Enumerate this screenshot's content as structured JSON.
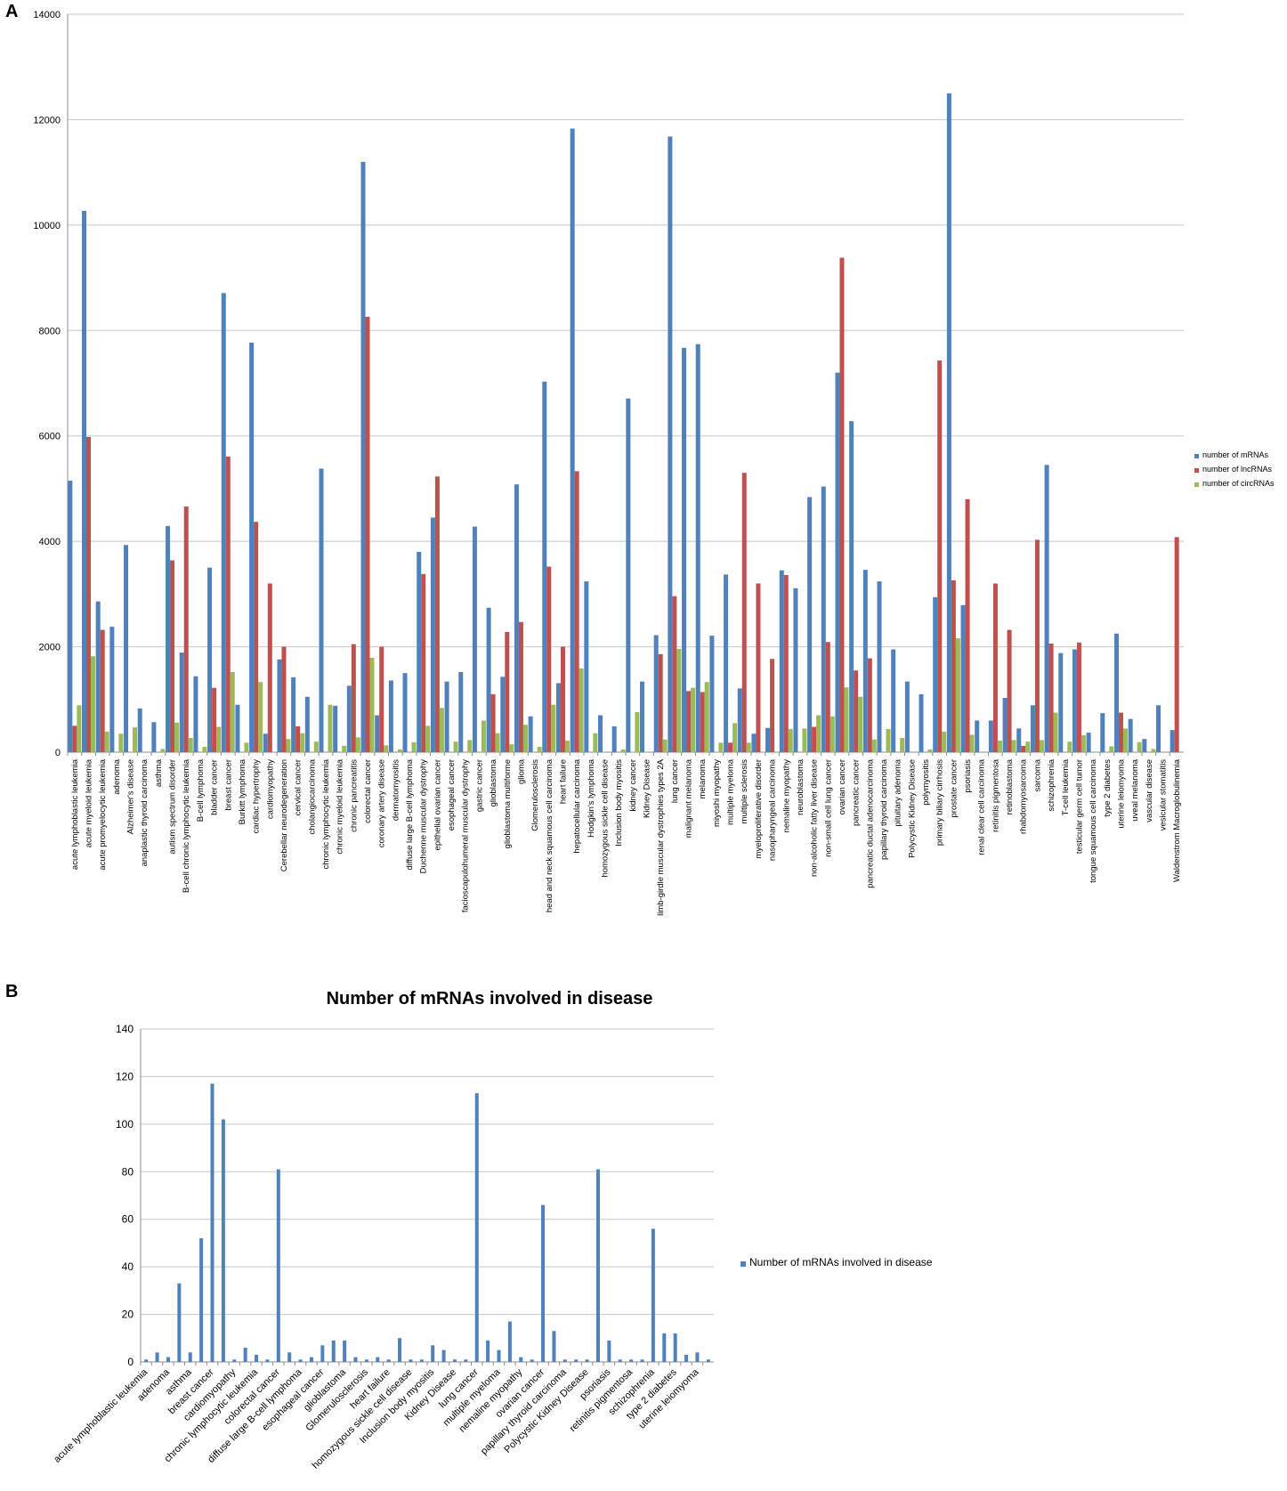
{
  "panels": {
    "a": "A",
    "b": "B"
  },
  "chart_data": [
    {
      "type": "bar",
      "title": "",
      "xlabel": "",
      "ylabel": "",
      "ylim": [
        0,
        14000
      ],
      "yticks": [
        0,
        2000,
        4000,
        6000,
        8000,
        10000,
        12000,
        14000
      ],
      "grid": true,
      "legend_position": "right",
      "colors": [
        "#4f81bd",
        "#c0504d",
        "#9bbb59"
      ],
      "categories": [
        "acute lymphoblastic leukemia",
        "acute myeloid leukemia",
        "acute promyelocytic leukemia",
        "adenoma",
        "Alzheimer's disease",
        "anaplastic thyroid carcinoma",
        "asthma",
        "autism spectrum disorder",
        "B-cell chronic lymphocytic leukemia",
        "B-cell lymphoma",
        "bladder cancer",
        "breast cancer",
        "Burkitt lymphoma",
        "cardiac hypertrophy",
        "cardiomyopathy",
        "Cerebellar neurodegeneration",
        "cervical cancer",
        "cholangiocarcinoma",
        "chronic lymphocytic leukemia",
        "chronic myeloid leukemia",
        "chronic pancreatitis",
        "colorectal cancer",
        "coronary artery disease",
        "dermatomyositis",
        "diffuse large B-cell lymphoma",
        "Duchenne muscular dystrophy",
        "epithelial ovarian cancer",
        "esophageal cancer",
        "facioscapulohumeral muscular dystrophy",
        "gastric cancer",
        "glioblastoma",
        "glioblastoma multiforme",
        "glioma",
        "Glomerulosclerosis",
        "head and neck squamous cell carcinoma",
        "heart failure",
        "hepatocellular carcinoma",
        "Hodgkin's lymphoma",
        "homozygous sickle cell disease",
        "Inclusion body myositis",
        "kidney cancer",
        "Kidney Disease",
        "limb-girdle muscular dystrophies types 2A",
        "lung cancer",
        "malignant melanoma",
        "melanoma",
        "miyoshi myopathy",
        "multiple myeloma",
        "multiple sclerosis",
        "myeloproliferative disorder",
        "nasopharyngeal carcinoma",
        "nemaline myopathy",
        "neuroblastoma",
        "non-alcoholic fatty liver disease",
        "non-small cell lung cancer",
        "ovarian cancer",
        "pancreatic cancer",
        "pancreatic ductal adenocarcinoma",
        "papillary thyroid carcinoma",
        "pituitary adenoma",
        "Polycystic Kidney Disease",
        "polymyositis",
        "primary biliary cirrhosis",
        "prostate cancer",
        "psoriasis",
        "renal clear cell carcinoma",
        "retinitis pigmentosa",
        "retinoblastoma",
        "rhabdomyosarcoma",
        "sarcoma",
        "schizophrenia",
        "T-cell leukemia",
        "testicular germ cell tumor",
        "tongue squamous cell carcinoma",
        "type 2 diabetes",
        "uterine leiomyoma",
        "uveal melanoma",
        "vascular disease",
        "vesicular stomatitis",
        "Waldenstrom Macroglobulinemia"
      ],
      "series": [
        {
          "name": "number of mRNAs",
          "values": [
            5150,
            10270,
            2860,
            2380,
            3930,
            830,
            570,
            4290,
            1890,
            1440,
            3500,
            8710,
            900,
            7770,
            350,
            1760,
            1420,
            1050,
            5380,
            880,
            1260,
            11200,
            700,
            1360,
            1500,
            3800,
            4450,
            1340,
            1520,
            4280,
            2740,
            1430,
            5080,
            680,
            7030,
            1310,
            11830,
            3240,
            700,
            490,
            6710,
            1340,
            2220,
            11680,
            7670,
            7740,
            2210,
            3370,
            1210,
            350,
            460,
            3450,
            3110,
            4840,
            5040,
            7200,
            6280,
            3460,
            3240,
            1950,
            1340,
            1100,
            2940,
            12500,
            2790,
            600,
            600,
            1030,
            450,
            890,
            5450,
            1880,
            1950,
            370,
            740,
            2250,
            630,
            250,
            890,
            420
          ]
        },
        {
          "name": "number of lncRNAs",
          "values": [
            500,
            5980,
            2320,
            0,
            0,
            0,
            0,
            3640,
            4660,
            0,
            1220,
            5610,
            0,
            4370,
            3200,
            2000,
            490,
            0,
            0,
            0,
            2050,
            8260,
            2000,
            0,
            0,
            3380,
            5230,
            0,
            0,
            0,
            1100,
            2280,
            2470,
            0,
            3520,
            2000,
            5330,
            0,
            0,
            0,
            0,
            0,
            1860,
            2960,
            1160,
            1140,
            0,
            180,
            5300,
            3200,
            1770,
            3360,
            0,
            480,
            2090,
            9380,
            1550,
            1780,
            0,
            0,
            0,
            0,
            7430,
            3260,
            4800,
            0,
            3200,
            2320,
            120,
            4030,
            2060,
            0,
            2080,
            0,
            0,
            750,
            0,
            0,
            0,
            4080
          ]
        },
        {
          "name": "number of circRNAs",
          "values": [
            890,
            1820,
            390,
            350,
            470,
            0,
            60,
            560,
            270,
            100,
            480,
            1520,
            180,
            1330,
            0,
            250,
            360,
            200,
            900,
            120,
            280,
            1790,
            130,
            50,
            190,
            500,
            840,
            200,
            230,
            600,
            360,
            150,
            520,
            100,
            900,
            220,
            1590,
            360,
            0,
            50,
            760,
            0,
            240,
            1960,
            1220,
            1330,
            180,
            550,
            180,
            0,
            0,
            440,
            450,
            700,
            680,
            1230,
            1050,
            240,
            440,
            270,
            0,
            50,
            390,
            2160,
            330,
            0,
            220,
            230,
            200,
            230,
            750,
            200,
            320,
            0,
            110,
            450,
            190,
            60,
            0,
            0
          ]
        }
      ]
    },
    {
      "type": "bar",
      "title": "Number of mRNAs involved in disease",
      "xlabel": "",
      "ylabel": "",
      "ylim": [
        0,
        140
      ],
      "yticks": [
        0,
        20,
        40,
        60,
        80,
        100,
        120,
        140
      ],
      "grid": true,
      "legend_position": "right",
      "colors": [
        "#4f81bd"
      ],
      "categories": [
        "acute lymphoblastic leukemia",
        "",
        "adenoma",
        "",
        "asthma",
        "",
        "breast cancer",
        "",
        "cardiomyopathy",
        "",
        "chronic lymphocytic leukemia",
        "",
        "colorectal cancer",
        "",
        "diffuse large B-cell lymphoma",
        "",
        "esophageal cancer",
        "",
        "glioblastoma",
        "",
        "Glomerulosclerosis",
        "",
        "heart failure",
        "",
        "homozygous sickle cell disease",
        "",
        "Inclusion body myositis",
        "",
        "Kidney Disease",
        "",
        "lung cancer",
        "",
        "multiple myeloma",
        "",
        "nemaline myopathy",
        "",
        "ovarian cancer",
        "",
        "papillary thyroid carcinoma",
        "",
        "Polycystic Kidney Disease",
        "",
        "psoriasis",
        "",
        "retinitis pigmentosa",
        "",
        "schizophrenia",
        "",
        "type 2 diabetes",
        "",
        "uterine leiomyoma",
        ""
      ],
      "series": [
        {
          "name": "Number of mRNAs involved in disease",
          "values": [
            1,
            4,
            2,
            33,
            4,
            52,
            117,
            102,
            1,
            6,
            3,
            1,
            81,
            4,
            1,
            2,
            7,
            9,
            9,
            2,
            1,
            2,
            1,
            10,
            1,
            1,
            7,
            5,
            1,
            1,
            113,
            9,
            5,
            17,
            2,
            1,
            66,
            13,
            1,
            1,
            1,
            81,
            9,
            1,
            1,
            1,
            56,
            12,
            12,
            3,
            4,
            1
          ]
        }
      ]
    }
  ]
}
